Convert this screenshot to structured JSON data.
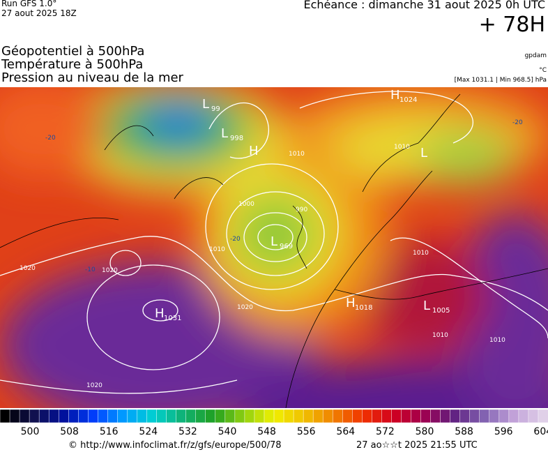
{
  "header": {
    "run": "Run GFS 1.0°",
    "run_date": "27 aout 2025 18Z",
    "valid": "Echéance : dimanche 31 aout 2025 0h UTC",
    "lead": "+ 78H",
    "fields": [
      "Géopotentiel à 500hPa",
      "Température à 500hPa",
      "Pression au niveau de la mer"
    ],
    "units": [
      "gpdam",
      "°C",
      "[Max 1031.1 | Min 968.5] hPa"
    ]
  },
  "map": {
    "centers": [
      {
        "letter": "L",
        "value": "99"
      },
      {
        "letter": "L",
        "value": "998"
      },
      {
        "letter": "H"
      },
      {
        "letter": "H",
        "value": "1024"
      },
      {
        "letter": "L"
      },
      {
        "letter": "L",
        "value": "969"
      },
      {
        "letter": "H",
        "value": "1031"
      },
      {
        "letter": "H",
        "value": "1018"
      },
      {
        "letter": "L",
        "value": "1005"
      }
    ],
    "isobar_labels": [
      "1020",
      "1020",
      "1020",
      "1020",
      "1010",
      "1010",
      "1000",
      "990",
      "1010",
      "1010",
      "1010",
      "1010"
    ],
    "temperature_labels": [
      "-20",
      "-20",
      "-10",
      "-20"
    ]
  },
  "scale": {
    "labels": [
      "500",
      "508",
      "516",
      "524",
      "532",
      "540",
      "548",
      "556",
      "564",
      "572",
      "580",
      "588",
      "596",
      "604"
    ]
  },
  "footer": {
    "source": "© http://www.infoclimat.fr/z/gfs/europe/500/78",
    "generated": "27 ao☆☆t 2025 21:55 UTC"
  }
}
